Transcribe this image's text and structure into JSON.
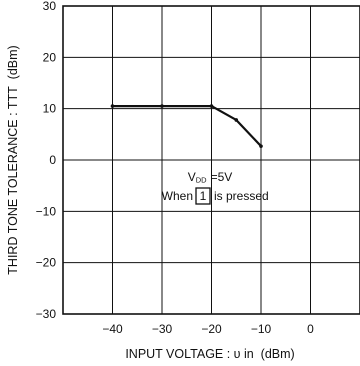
{
  "chart_data": {
    "type": "line",
    "title": "",
    "xlabel": "INPUT VOLTAGE : υ in  (dBm)",
    "ylabel": "THIRD TONE TOLERANCE : TTT  (dBm)",
    "xlim": [
      -50,
      10
    ],
    "ylim": [
      -30,
      30
    ],
    "x_ticks": [
      -40,
      -30,
      -20,
      -10,
      0
    ],
    "y_ticks": [
      30,
      20,
      10,
      0,
      -10,
      -20,
      -30
    ],
    "x_tick_labels": [
      "−40",
      "−30",
      "−20",
      "−10",
      "0"
    ],
    "y_tick_labels": [
      "30",
      "20",
      "10",
      "0",
      "−10",
      "−20",
      "−30"
    ],
    "grid": true,
    "series": [
      {
        "x": [
          -40,
          -30,
          -20,
          -15,
          -10
        ],
        "y": [
          10.5,
          10.5,
          10.5,
          7.8,
          2.7
        ]
      }
    ],
    "annotations": {
      "supply": {
        "text": "=5V",
        "sym": "V",
        "sub": "DD"
      },
      "when_prefix": "When",
      "when_box": "1",
      "when_suffix": "is pressed"
    },
    "line_color": "#111111",
    "grid_color": "#111111"
  }
}
